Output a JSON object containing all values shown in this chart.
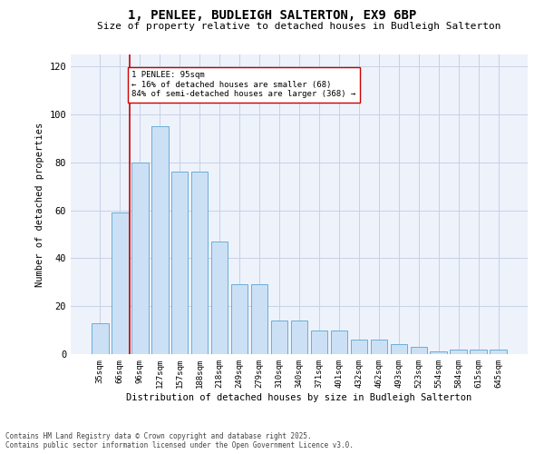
{
  "title1": "1, PENLEE, BUDLEIGH SALTERTON, EX9 6BP",
  "title2": "Size of property relative to detached houses in Budleigh Salterton",
  "xlabel": "Distribution of detached houses by size in Budleigh Salterton",
  "ylabel": "Number of detached properties",
  "categories": [
    "35sqm",
    "66sqm",
    "96sqm",
    "127sqm",
    "157sqm",
    "188sqm",
    "218sqm",
    "249sqm",
    "279sqm",
    "310sqm",
    "340sqm",
    "371sqm",
    "401sqm",
    "432sqm",
    "462sqm",
    "493sqm",
    "523sqm",
    "554sqm",
    "584sqm",
    "615sqm",
    "645sqm"
  ],
  "values": [
    13,
    59,
    80,
    95,
    76,
    76,
    47,
    29,
    29,
    14,
    14,
    10,
    10,
    6,
    6,
    4,
    3,
    1,
    2,
    2,
    2
  ],
  "bar_color": "#cce0f5",
  "bar_edge_color": "#6aaed6",
  "background_color": "#eef2fb",
  "grid_color": "#c8d0e8",
  "annotation_text": "1 PENLEE: 95sqm\n← 16% of detached houses are smaller (68)\n84% of semi-detached houses are larger (368) →",
  "vline_color": "#cc0000",
  "annotation_box_color": "#ffffff",
  "annotation_box_edge": "#cc0000",
  "ylim": [
    0,
    125
  ],
  "yticks": [
    0,
    20,
    40,
    60,
    80,
    100,
    120
  ],
  "footer1": "Contains HM Land Registry data © Crown copyright and database right 2025.",
  "footer2": "Contains public sector information licensed under the Open Government Licence v3.0."
}
